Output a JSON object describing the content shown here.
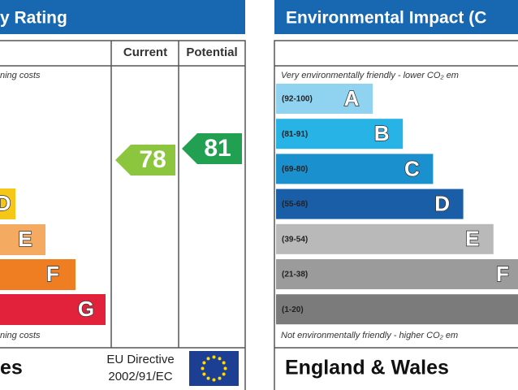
{
  "left_panel": {
    "title": "y Rating",
    "col_current": "Current",
    "col_potential": "Potential",
    "top_note": "ning costs",
    "bottom_note": "ning costs",
    "bands": [
      {
        "letter": "D"
      },
      {
        "letter": "E"
      },
      {
        "letter": "F"
      },
      {
        "letter": "G"
      }
    ],
    "current": "78",
    "potential": "81",
    "footer": "es",
    "directive_line1": "EU Directive",
    "directive_line2": "2002/91/EC"
  },
  "right_panel": {
    "title": "Environmental Impact (C",
    "top_note": "Very environmentally friendly - lower CO₂ em",
    "bottom_note": "Not environmentally friendly - higher CO₂ em",
    "bands": [
      {
        "range": "(92-100)",
        "letter": "A"
      },
      {
        "range": "(81-91)",
        "letter": "B"
      },
      {
        "range": "(69-80)",
        "letter": "C"
      },
      {
        "range": "(55-68)",
        "letter": "D"
      },
      {
        "range": "(39-54)",
        "letter": "E"
      },
      {
        "range": "(21-38)",
        "letter": "F"
      },
      {
        "range": "(1-20)"
      }
    ],
    "footer": "England & Wales"
  }
}
